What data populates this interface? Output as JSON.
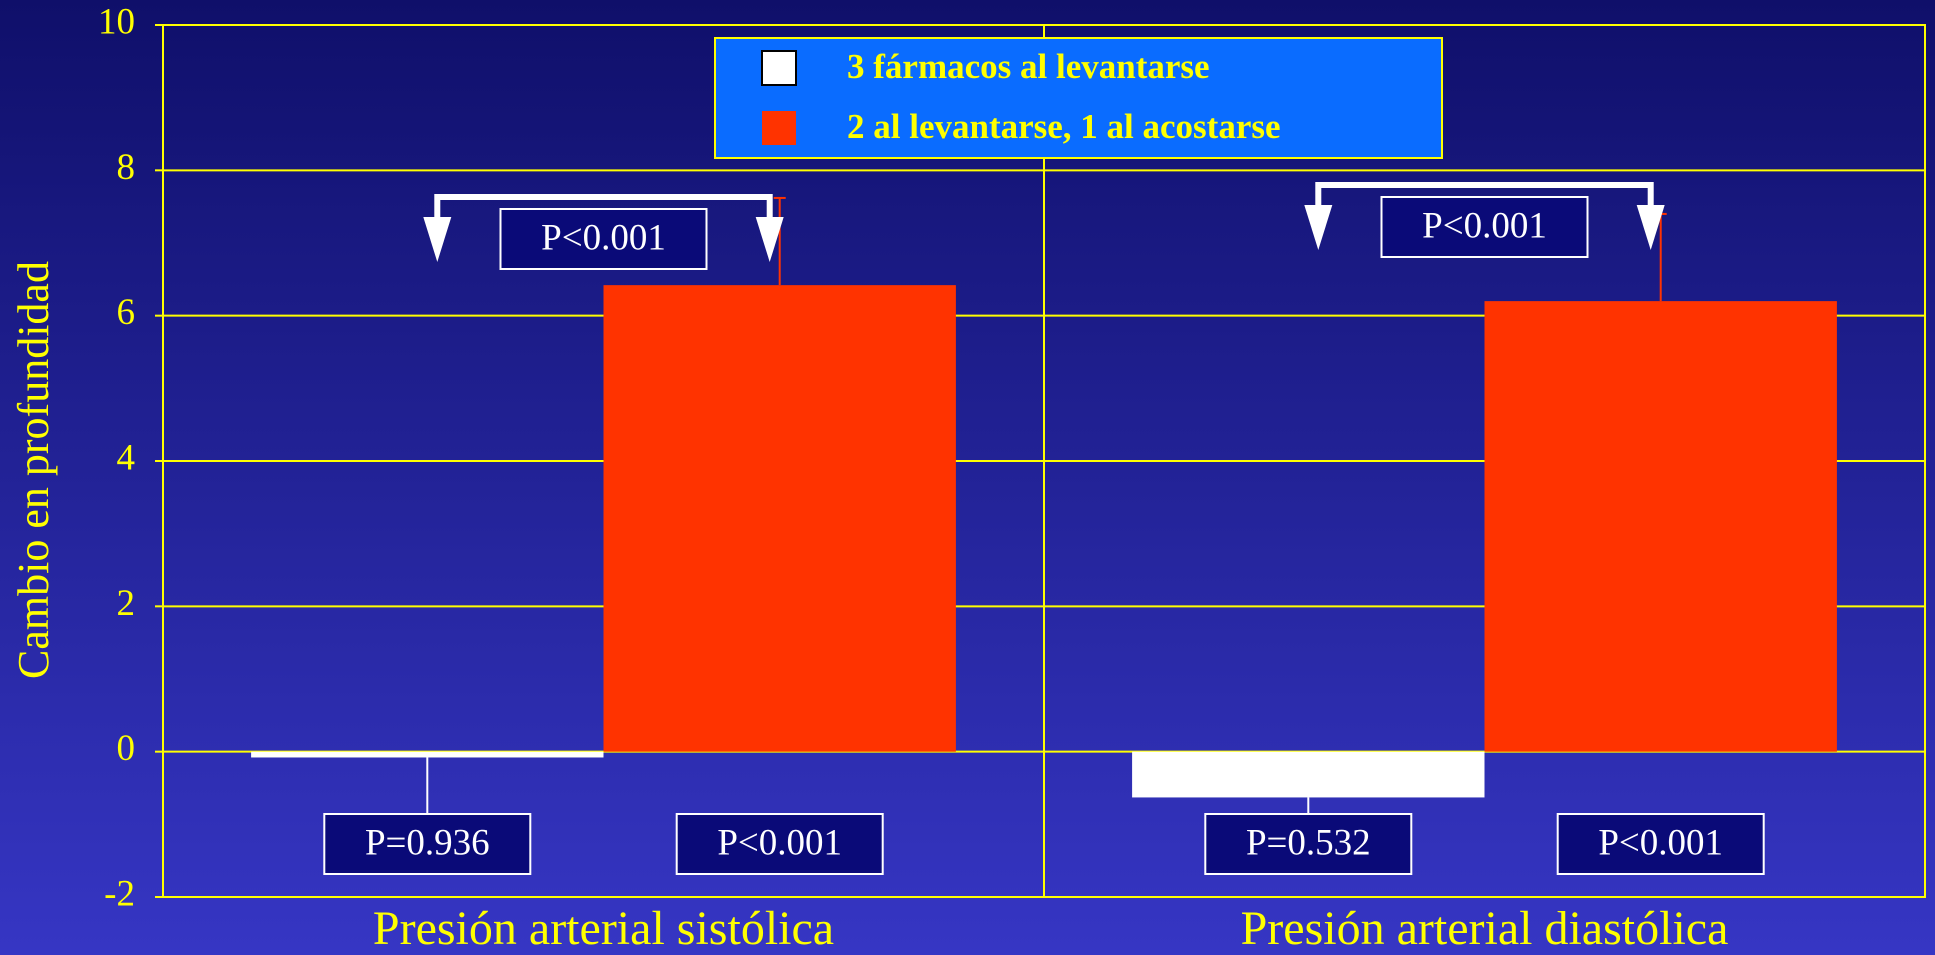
{
  "chart_data": {
    "type": "bar",
    "y_label": "Cambio en profundidad",
    "categories": [
      "Presión arterial sistólica",
      "Presión arterial diastólica"
    ],
    "series": [
      {
        "name": "3 fármacos al levantarse",
        "color": "#ffffff",
        "values": [
          -0.08,
          -0.63
        ],
        "errors": [
          0.8,
          0.8
        ]
      },
      {
        "name": "2 al levantarse, 1 al acostarse",
        "color": "#ff3300",
        "values": [
          6.42,
          6.2
        ],
        "errors": [
          1.2,
          1.2
        ]
      }
    ],
    "bar_p_values": [
      [
        "P=0.936",
        "P<0.001"
      ],
      [
        "P=0.532",
        "P<0.001"
      ]
    ],
    "comparison_p_values": [
      "P<0.001",
      "P<0.001"
    ],
    "ylim": [
      -2,
      10
    ],
    "yticks": [
      -2,
      0,
      2,
      4,
      6,
      8,
      10
    ],
    "grid": true
  }
}
